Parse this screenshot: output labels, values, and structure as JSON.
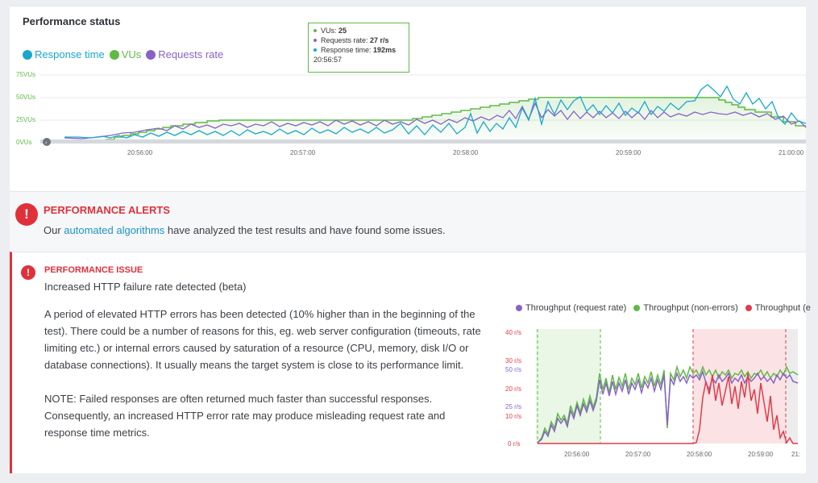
{
  "status": {
    "title": "Performance status",
    "legend": [
      {
        "label": "Response time",
        "color": "#1aa7cc"
      },
      {
        "label": "VUs",
        "color": "#5fba46"
      },
      {
        "label": "Requests rate",
        "color": "#8a62c6"
      }
    ],
    "tooltip": {
      "vus_label": "VUs:",
      "vus_value": "25",
      "rate_label": "Requests rate:",
      "rate_value": "27 r/s",
      "resp_label": "Response time:",
      "resp_value": "192ms",
      "time": "20:56:57"
    },
    "chart_data": {
      "type": "line",
      "y_ticks": [
        "75VUs",
        "50VUs",
        "25VUs",
        "0VUs"
      ],
      "x_ticks": [
        "20:56:00",
        "20:57:00",
        "20:58:00",
        "20:59:00",
        "21:00:00"
      ]
    }
  },
  "alerts": {
    "title": "PERFORMANCE ALERTS",
    "text_prefix": "Our ",
    "link": "automated algorithms",
    "text_suffix": " have analyzed the test results and have found some issues."
  },
  "issue": {
    "title": "PERFORMANCE ISSUE",
    "subtitle": "Increased HTTP failure rate detected (beta)",
    "paragraph1": "A period of elevated HTTP errors has been detected (10% higher than in the beginning of the test). There could be a number of reasons for this, eg. web server configuration (timeouts, rate limiting etc.) or internal errors caused by saturation of a resource (CPU, memory, disk I/O or database connections). It usually means the target system is close to its performance limit.",
    "paragraph2": "NOTE: Failed responses are often returned much faster than successful responses. Consequently, an increased HTTP error rate may produce misleading request rate and response time metrics.",
    "legend": [
      {
        "label": "Throughput (request rate)",
        "color": "#8a62c6"
      },
      {
        "label": "Throughput (non-errors)",
        "color": "#5fba46"
      },
      {
        "label": "Throughput (e",
        "color": "#e23b4b"
      }
    ],
    "chart_data": {
      "type": "line",
      "y_ticks_left": [
        "40 r/s",
        "30 r/s",
        "20 r/s",
        "10 r/s",
        "0 r/s"
      ],
      "y_ticks_mid": [
        "50 r/s",
        "25 r/s"
      ],
      "x_ticks": [
        "20:56:00",
        "20:57:00",
        "20:58:00",
        "20:59:00",
        "21:"
      ]
    }
  }
}
